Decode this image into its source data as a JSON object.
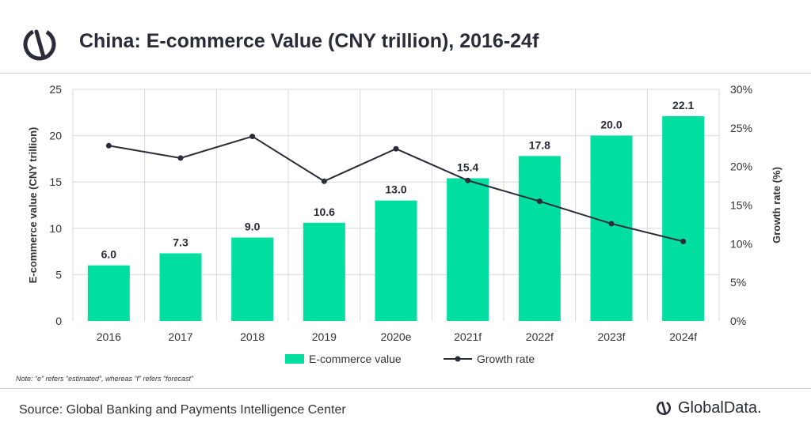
{
  "header": {
    "title": "China: E-commerce Value (CNY trillion), 2016-24f"
  },
  "footer": {
    "note": "Note: “e” refers “estimated”, whereas “f” refers “forecast”",
    "source": "Source: Global Banking and Payments Intelligence Center",
    "brand": "GlobalData."
  },
  "colors": {
    "bar": "#00df9f",
    "line": "#2b2b3a",
    "grid": "#d9d9d9",
    "brand": "#2b2b3a"
  },
  "icons": {
    "logo": "globaldata-logo-icon"
  },
  "chart_data": {
    "type": "bar",
    "title": "China: E-commerce Value (CNY trillion), 2016-24f",
    "categories": [
      "2016",
      "2017",
      "2018",
      "2019",
      "2020e",
      "2021f",
      "2022f",
      "2023f",
      "2024f"
    ],
    "series": [
      {
        "name": "E-commerce value",
        "type": "bar",
        "axis": "left",
        "values": [
          6.0,
          7.3,
          9.0,
          10.6,
          13.0,
          15.4,
          17.8,
          20.0,
          22.1
        ],
        "labels": [
          "6.0",
          "7.3",
          "9.0",
          "10.6",
          "13.0",
          "15.4",
          "17.8",
          "20.0",
          "22.1"
        ]
      },
      {
        "name": "Growth rate",
        "type": "line",
        "axis": "right",
        "values": [
          22.7,
          21.1,
          23.9,
          18.1,
          22.3,
          18.2,
          15.5,
          12.6,
          10.3
        ]
      }
    ],
    "ylabel": "E-commerce value (CNY trillion)",
    "ylabel_right": "Growth rate (%)",
    "ylim": [
      0,
      25
    ],
    "yticks": [
      "0",
      "5",
      "10",
      "15",
      "20",
      "25"
    ],
    "ylim_right": [
      0,
      30
    ],
    "yticks_right": [
      "0%",
      "5%",
      "10%",
      "15%",
      "20%",
      "25%",
      "30%"
    ],
    "grid": true,
    "legend": {
      "position": "bottom",
      "entries": [
        "E-commerce value",
        "Growth rate"
      ]
    }
  }
}
